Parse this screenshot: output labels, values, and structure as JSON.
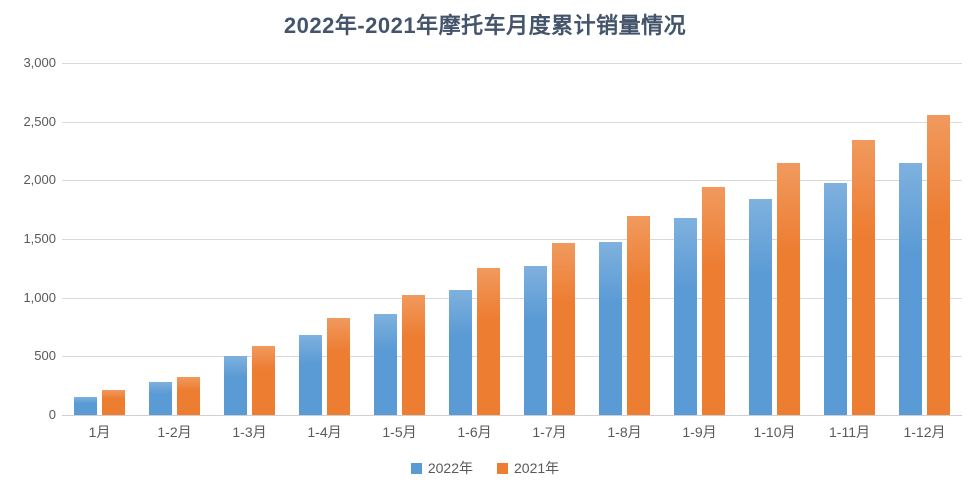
{
  "chart_data": {
    "type": "bar",
    "title": "2022年-2021年摩托车月度累计销量情况",
    "categories": [
      "1月",
      "1-2月",
      "1-3月",
      "1-4月",
      "1-5月",
      "1-6月",
      "1-7月",
      "1-8月",
      "1-9月",
      "1-10月",
      "1-11月",
      "1-12月"
    ],
    "series": [
      {
        "name": "2022年",
        "color": "#5B9BD5",
        "values": [
          155,
          285,
          500,
          680,
          865,
          1070,
          1270,
          1475,
          1680,
          1845,
          1980,
          2145
        ]
      },
      {
        "name": "2021年",
        "color": "#ED7D31",
        "values": [
          215,
          325,
          590,
          825,
          1025,
          1250,
          1470,
          1695,
          1940,
          2150,
          2340,
          2555
        ]
      }
    ],
    "xlabel": "",
    "ylabel": "",
    "ylim": [
      0,
      3000
    ],
    "ytick_interval": 500,
    "ytick_labels": [
      "0",
      "500",
      "1,000",
      "1,500",
      "2,000",
      "2,500",
      "3,000"
    ],
    "grid": true,
    "legend_position": "bottom",
    "styles": {
      "title_color": "#44546A",
      "axis_text_color": "#595959",
      "gridline_color": "#D9D9D9",
      "baseline_color": "#CFCFCF",
      "background": "#FFFFFF"
    }
  }
}
